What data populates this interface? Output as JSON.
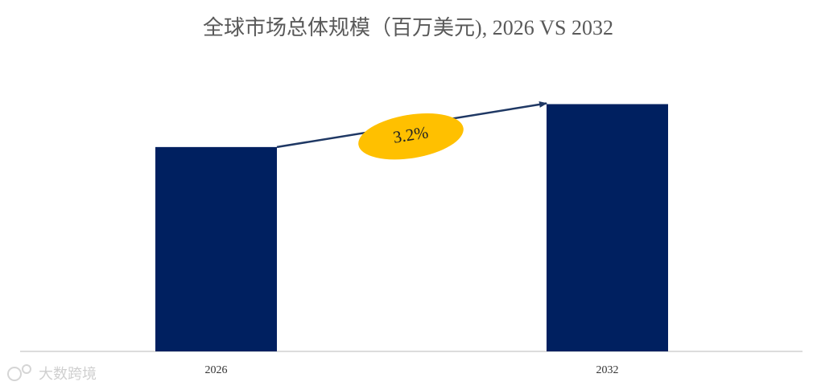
{
  "chart_data": {
    "type": "bar",
    "title": "全球市场总体规模（百万美元), 2026 VS 2032",
    "categories": [
      "2026",
      "2032"
    ],
    "values": [
      100,
      121
    ],
    "color": "#002060",
    "ylim": [
      0,
      133
    ],
    "annotation": "3.2%",
    "annotation_color": "#FFC000",
    "watermark": "大数跨境"
  }
}
